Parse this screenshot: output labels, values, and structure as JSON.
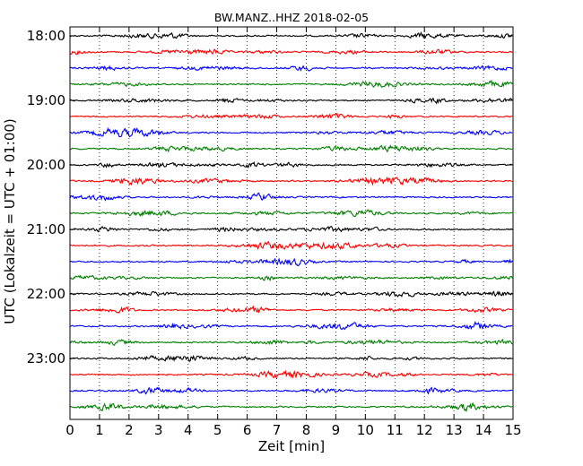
{
  "chart_data": {
    "type": "line",
    "title": "BW.MANZ..HHZ 2018-02-05",
    "xlabel": "Zeit  [min]",
    "ylabel": "UTC (Lokalzeit = UTC + 01:00)",
    "xlim": [
      0,
      15
    ],
    "x_ticks": [
      "0",
      "1",
      "2",
      "3",
      "4",
      "5",
      "6",
      "7",
      "8",
      "9",
      "10",
      "11",
      "12",
      "13",
      "14",
      "15"
    ],
    "y_ticks": [
      "18:00",
      "19:00",
      "20:00",
      "21:00",
      "22:00",
      "23:00"
    ],
    "grid": "vertical dotted",
    "trace_interval_min": 15,
    "series": [
      {
        "start": "18:00",
        "color": "#000000"
      },
      {
        "start": "18:15",
        "color": "#ff0000"
      },
      {
        "start": "18:30",
        "color": "#0000ff"
      },
      {
        "start": "18:45",
        "color": "#007f00"
      },
      {
        "start": "19:00",
        "color": "#000000"
      },
      {
        "start": "19:15",
        "color": "#ff0000"
      },
      {
        "start": "19:30",
        "color": "#0000ff"
      },
      {
        "start": "19:45",
        "color": "#007f00"
      },
      {
        "start": "20:00",
        "color": "#000000"
      },
      {
        "start": "20:15",
        "color": "#ff0000"
      },
      {
        "start": "20:30",
        "color": "#0000ff"
      },
      {
        "start": "20:45",
        "color": "#007f00"
      },
      {
        "start": "21:00",
        "color": "#000000"
      },
      {
        "start": "21:15",
        "color": "#ff0000"
      },
      {
        "start": "21:30",
        "color": "#0000ff"
      },
      {
        "start": "21:45",
        "color": "#007f00"
      },
      {
        "start": "22:00",
        "color": "#000000"
      },
      {
        "start": "22:15",
        "color": "#ff0000"
      },
      {
        "start": "22:30",
        "color": "#0000ff"
      },
      {
        "start": "22:45",
        "color": "#007f00"
      },
      {
        "start": "23:00",
        "color": "#000000"
      },
      {
        "start": "23:15",
        "color": "#ff0000"
      },
      {
        "start": "23:30",
        "color": "#0000ff"
      },
      {
        "start": "23:45",
        "color": "#007f00"
      }
    ]
  }
}
